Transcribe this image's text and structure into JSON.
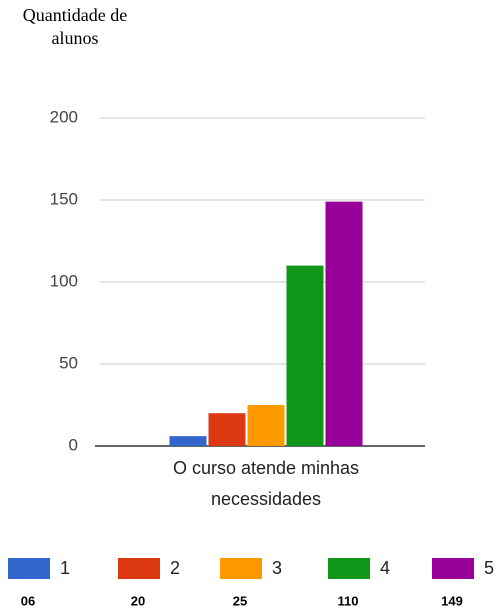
{
  "chart_data": {
    "type": "bar",
    "y_axis_label": "Quantidade de alunos",
    "categories": [
      "O curso atende minhas necessidades"
    ],
    "series": [
      {
        "name": "1",
        "color": "#3366cc",
        "values": [
          6
        ],
        "value_labels": [
          "06"
        ]
      },
      {
        "name": "2",
        "color": "#dc3912",
        "values": [
          20
        ],
        "value_labels": [
          "20"
        ]
      },
      {
        "name": "3",
        "color": "#ff9900",
        "values": [
          25
        ],
        "value_labels": [
          "25"
        ]
      },
      {
        "name": "4",
        "color": "#109618",
        "values": [
          110
        ],
        "value_labels": [
          "110"
        ]
      },
      {
        "name": "5",
        "color": "#990099",
        "values": [
          149
        ],
        "value_labels": [
          "149"
        ]
      }
    ],
    "ylim": [
      0,
      200
    ],
    "yticks": [
      0,
      50,
      100,
      150,
      200
    ],
    "grid": true,
    "legend": "bottom"
  }
}
